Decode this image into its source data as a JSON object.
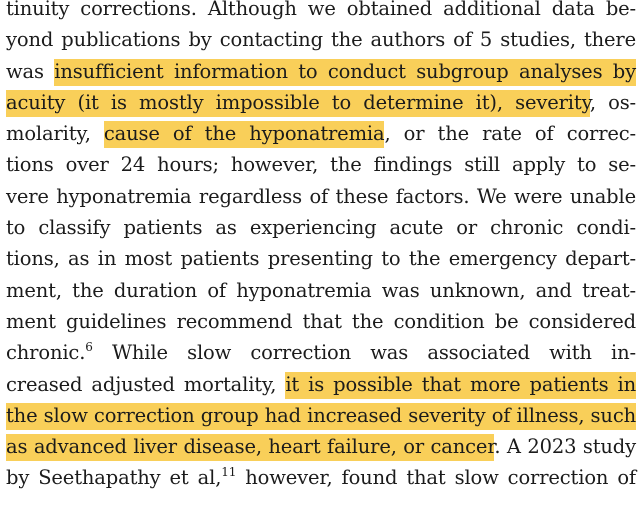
{
  "lines": [
    {
      "segments": [
        {
          "t": "tinuity corrections. Although we obtained additional data be-",
          "hl": false
        }
      ]
    },
    {
      "segments": [
        {
          "t": "yond publications by contacting the authors of 5 studies, there",
          "hl": false
        }
      ]
    },
    {
      "segments": [
        {
          "t": "was ",
          "hl": false
        },
        {
          "t": "insufficient information to conduct subgroup analyses by",
          "hl": true
        }
      ]
    },
    {
      "segments": [
        {
          "t": "acuity (it is mostly impossible to determine it), severity",
          "hl": true
        },
        {
          "t": ", os-",
          "hl": false
        }
      ]
    },
    {
      "segments": [
        {
          "t": "molarity, ",
          "hl": false
        },
        {
          "t": "cause of the hyponatremia",
          "hl": true
        },
        {
          "t": ", or the rate of correc-",
          "hl": false
        }
      ]
    },
    {
      "segments": [
        {
          "t": "tions over 24 hours; however, the findings still apply to se-",
          "hl": false
        }
      ]
    },
    {
      "segments": [
        {
          "t": "vere hyponatremia regardless of these factors. We were unable",
          "hl": false
        }
      ]
    },
    {
      "segments": [
        {
          "t": "to classify patients as experiencing acute or chronic condi-",
          "hl": false
        }
      ]
    },
    {
      "segments": [
        {
          "t": "tions, as in most patients presenting to the emergency depart-",
          "hl": false
        }
      ]
    },
    {
      "segments": [
        {
          "t": "ment, the duration of hyponatremia was unknown, and treat-",
          "hl": false
        }
      ]
    },
    {
      "segments": [
        {
          "t": "ment guidelines recommend that the condition be considered",
          "hl": false
        }
      ]
    },
    {
      "segments": [
        {
          "t": "chronic.",
          "hl": false
        },
        {
          "t": "6",
          "hl": false,
          "sup": true
        },
        {
          "t": " While slow correction was associated with in-",
          "hl": false
        }
      ]
    },
    {
      "segments": [
        {
          "t": "creased adjusted mortality, ",
          "hl": false
        },
        {
          "t": "it is possible that more patients in",
          "hl": true
        }
      ]
    },
    {
      "segments": [
        {
          "t": "the slow correction group had increased severity of illness, such",
          "hl": true
        }
      ]
    },
    {
      "segments": [
        {
          "t": "as advanced liver disease, heart failure, or cancer",
          "hl": true
        },
        {
          "t": ". A 2023 study",
          "hl": false
        }
      ]
    },
    {
      "segments": [
        {
          "t": "by Seethapathy et al,",
          "hl": false
        },
        {
          "t": "11",
          "hl": false,
          "sup": true
        },
        {
          "t": " however, found that slow correction of",
          "hl": false
        }
      ]
    }
  ]
}
